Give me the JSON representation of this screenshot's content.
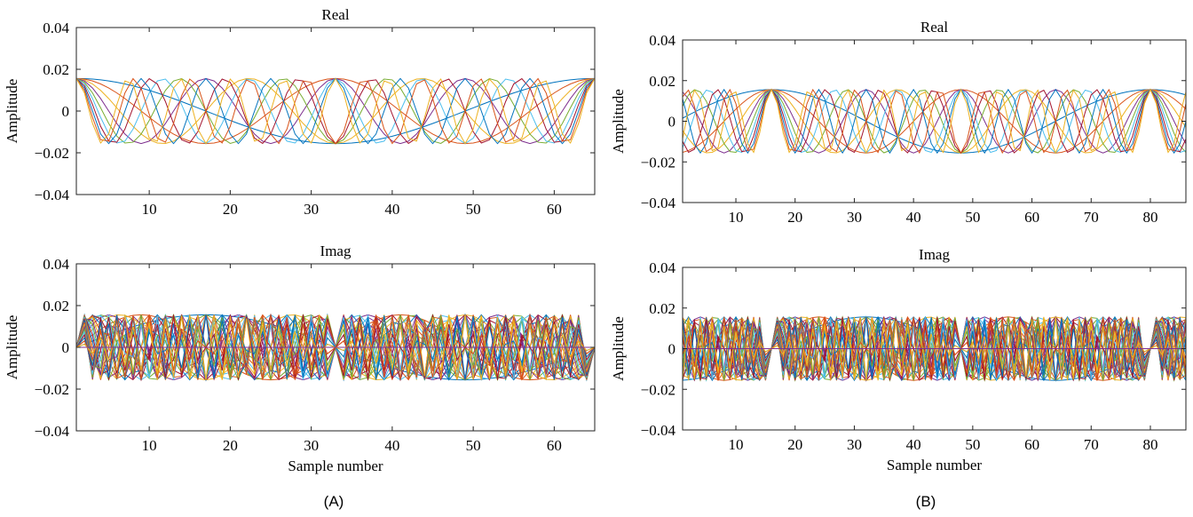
{
  "colors": [
    "#0072bd",
    "#d95319",
    "#edb120",
    "#7e2f8e",
    "#77ac30",
    "#4dbeee",
    "#a2142f"
  ],
  "panel_labels": [
    "(A)",
    "(B)"
  ],
  "chart_data": [
    {
      "id": "A-real",
      "panel": "(A)",
      "type": "line",
      "title": "Real",
      "xlabel": "",
      "ylabel": "Amplitude",
      "xlim": [
        1,
        65
      ],
      "ylim": [
        -0.04,
        0.04
      ],
      "xticks": [
        10,
        20,
        30,
        40,
        50,
        60
      ],
      "yticks": [
        -0.04,
        -0.02,
        0,
        0.02,
        0.04
      ],
      "ytick_labels": [
        "−0.04",
        "−0.02",
        "0",
        "0.02",
        "0.04"
      ],
      "grid": false,
      "series_formula": "amplitude * cos(2*pi*k*(n-1)/N), n = 1..N+1, one line per subcarrier k",
      "N": 64,
      "amplitude": 0.0156,
      "subcarriers": [
        1,
        2,
        3,
        4,
        5,
        6,
        7,
        8,
        9,
        10
      ]
    },
    {
      "id": "A-imag",
      "panel": "(A)",
      "type": "line",
      "title": "Imag",
      "xlabel": "Sample number",
      "ylabel": "Amplitude",
      "xlim": [
        1,
        65
      ],
      "ylim": [
        -0.04,
        0.04
      ],
      "xticks": [
        10,
        20,
        30,
        40,
        50,
        60
      ],
      "yticks": [
        -0.04,
        -0.02,
        0,
        0.02,
        0.04
      ],
      "ytick_labels": [
        "−0.04",
        "−0.02",
        "0",
        "0.02",
        "0.04"
      ],
      "grid": false,
      "series_formula": "amplitude * sin(2*pi*k*(n-1)/N), n = 1..N+1, one line per subcarrier k",
      "N": 64,
      "amplitude": 0.0156,
      "subcarriers": [
        1,
        2,
        3,
        4,
        5,
        6,
        7,
        8,
        9,
        10,
        11,
        12,
        13,
        14,
        15,
        16,
        17,
        18,
        19,
        20,
        21,
        22,
        23,
        24,
        25,
        26,
        27,
        28,
        29,
        30,
        31,
        32
      ]
    },
    {
      "id": "B-real",
      "panel": "(B)",
      "type": "line",
      "title": "Real",
      "xlabel": "",
      "ylabel": "Amplitude",
      "xlim": [
        1,
        86
      ],
      "ylim": [
        -0.04,
        0.04
      ],
      "xticks": [
        10,
        20,
        30,
        40,
        50,
        60,
        70,
        80
      ],
      "yticks": [
        -0.04,
        -0.02,
        0,
        0.02,
        0.04
      ],
      "ytick_labels": [
        "−0.04",
        "−0.02",
        "0",
        "0.02",
        "0.04"
      ],
      "grid": false,
      "series_formula": "amplitude * cos(2*pi*k*(n-16)/N), one line per subcarrier k",
      "N": 64,
      "amplitude": 0.0156,
      "subcarriers": [
        1,
        2,
        3,
        4,
        5,
        6,
        7,
        8,
        9,
        10
      ]
    },
    {
      "id": "B-imag",
      "panel": "(B)",
      "type": "line",
      "title": "Imag",
      "xlabel": "Sample number",
      "ylabel": "Amplitude",
      "xlim": [
        1,
        86
      ],
      "ylim": [
        -0.04,
        0.04
      ],
      "xticks": [
        10,
        20,
        30,
        40,
        50,
        60,
        70,
        80
      ],
      "yticks": [
        -0.04,
        -0.02,
        0,
        0.02,
        0.04
      ],
      "ytick_labels": [
        "−0.04",
        "−0.02",
        "0",
        "0.02",
        "0.04"
      ],
      "grid": false,
      "series_formula": "amplitude * sin(2*pi*k*(n-16)/N), one line per subcarrier k",
      "N": 64,
      "amplitude": 0.0156,
      "subcarriers": [
        1,
        2,
        3,
        4,
        5,
        6,
        7,
        8,
        9,
        10,
        11,
        12,
        13,
        14,
        15,
        16,
        17,
        18,
        19,
        20,
        21,
        22,
        23,
        24,
        25,
        26,
        27,
        28,
        29,
        30,
        31,
        32
      ]
    }
  ]
}
